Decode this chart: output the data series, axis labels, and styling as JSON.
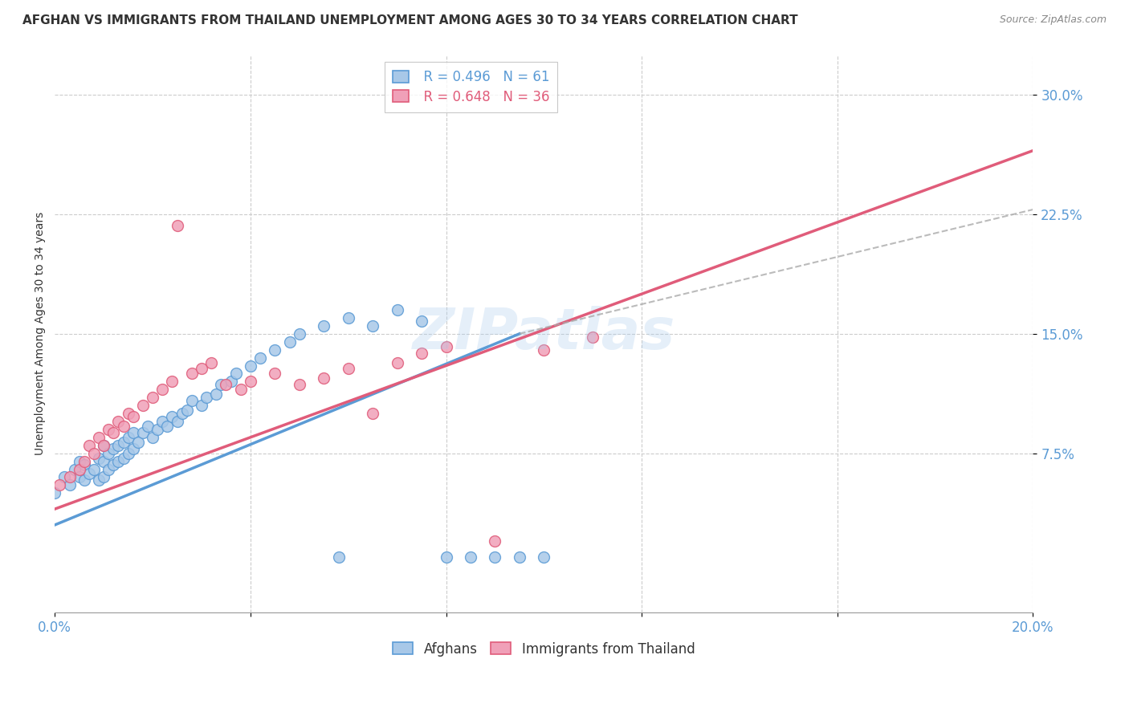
{
  "title": "AFGHAN VS IMMIGRANTS FROM THAILAND UNEMPLOYMENT AMONG AGES 30 TO 34 YEARS CORRELATION CHART",
  "source": "Source: ZipAtlas.com",
  "ylabel": "Unemployment Among Ages 30 to 34 years",
  "ytick_labels": [
    "30.0%",
    "22.5%",
    "15.0%",
    "7.5%"
  ],
  "ytick_values": [
    0.3,
    0.225,
    0.15,
    0.075
  ],
  "xlim": [
    0.0,
    0.2
  ],
  "ylim": [
    -0.025,
    0.325
  ],
  "legend_r1": "R = 0.496",
  "legend_n1": "N = 61",
  "legend_r2": "R = 0.648",
  "legend_n2": "N = 36",
  "legend_label1": "Afghans",
  "legend_label2": "Immigrants from Thailand",
  "blue_color": "#5B9BD5",
  "pink_color": "#E05C7A",
  "blue_fill": "#A8C8E8",
  "pink_fill": "#F0A0B8",
  "watermark": "ZIPatlas",
  "blue_scatter_x": [
    0.0,
    0.002,
    0.003,
    0.004,
    0.005,
    0.005,
    0.006,
    0.006,
    0.007,
    0.008,
    0.009,
    0.009,
    0.01,
    0.01,
    0.01,
    0.011,
    0.011,
    0.012,
    0.012,
    0.013,
    0.013,
    0.014,
    0.014,
    0.015,
    0.015,
    0.016,
    0.016,
    0.017,
    0.018,
    0.019,
    0.02,
    0.021,
    0.022,
    0.023,
    0.024,
    0.025,
    0.026,
    0.027,
    0.028,
    0.03,
    0.031,
    0.033,
    0.034,
    0.036,
    0.037,
    0.04,
    0.042,
    0.045,
    0.048,
    0.05,
    0.055,
    0.058,
    0.06,
    0.065,
    0.07,
    0.075,
    0.08,
    0.085,
    0.09,
    0.095,
    0.1
  ],
  "blue_scatter_y": [
    0.05,
    0.06,
    0.055,
    0.065,
    0.06,
    0.07,
    0.058,
    0.068,
    0.062,
    0.065,
    0.058,
    0.072,
    0.06,
    0.07,
    0.08,
    0.065,
    0.075,
    0.068,
    0.078,
    0.07,
    0.08,
    0.072,
    0.082,
    0.075,
    0.085,
    0.078,
    0.088,
    0.082,
    0.088,
    0.092,
    0.085,
    0.09,
    0.095,
    0.092,
    0.098,
    0.095,
    0.1,
    0.102,
    0.108,
    0.105,
    0.11,
    0.112,
    0.118,
    0.12,
    0.125,
    0.13,
    0.135,
    0.14,
    0.145,
    0.15,
    0.155,
    0.01,
    0.16,
    0.155,
    0.165,
    0.158,
    0.01,
    0.01,
    0.01,
    0.01,
    0.01
  ],
  "pink_scatter_x": [
    0.001,
    0.003,
    0.005,
    0.006,
    0.007,
    0.008,
    0.009,
    0.01,
    0.011,
    0.012,
    0.013,
    0.014,
    0.015,
    0.016,
    0.018,
    0.02,
    0.022,
    0.024,
    0.025,
    0.028,
    0.03,
    0.032,
    0.035,
    0.038,
    0.04,
    0.045,
    0.05,
    0.055,
    0.06,
    0.065,
    0.07,
    0.075,
    0.08,
    0.09,
    0.1,
    0.11
  ],
  "pink_scatter_y": [
    0.055,
    0.06,
    0.065,
    0.07,
    0.08,
    0.075,
    0.085,
    0.08,
    0.09,
    0.088,
    0.095,
    0.092,
    0.1,
    0.098,
    0.105,
    0.11,
    0.115,
    0.12,
    0.218,
    0.125,
    0.128,
    0.132,
    0.118,
    0.115,
    0.12,
    0.125,
    0.118,
    0.122,
    0.128,
    0.1,
    0.132,
    0.138,
    0.142,
    0.02,
    0.14,
    0.148
  ],
  "blue_line_x": [
    0.0,
    0.095
  ],
  "blue_line_y": [
    0.03,
    0.15
  ],
  "pink_line_x": [
    0.0,
    0.2
  ],
  "pink_line_y": [
    0.04,
    0.265
  ],
  "dashed_line_x": [
    0.095,
    0.2
  ],
  "dashed_line_y": [
    0.15,
    0.228
  ],
  "title_fontsize": 11,
  "source_fontsize": 9,
  "axis_label_fontsize": 10,
  "tick_fontsize": 12,
  "legend_fontsize": 12
}
